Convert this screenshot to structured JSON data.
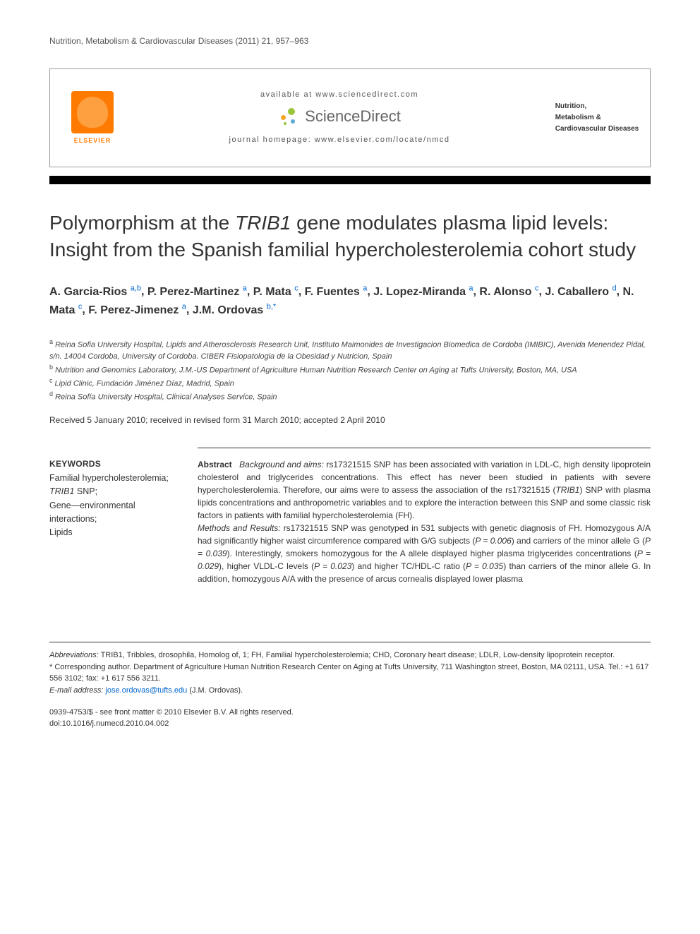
{
  "running_head": "Nutrition, Metabolism & Cardiovascular Diseases (2011) 21, 957–963",
  "masthead": {
    "available_at": "available at www.sciencedirect.com",
    "sciencedirect": "ScienceDirect",
    "journal_homepage": "journal homepage: www.elsevier.com/locate/nmcd",
    "elsevier_label": "ELSEVIER",
    "journal_cover_lines": [
      "Nutrition,",
      "Metabolism &",
      "Cardiovascular Diseases"
    ]
  },
  "title": {
    "pre": "Polymorphism at the ",
    "gene": "TRIB1",
    "post": " gene modulates plasma lipid levels: Insight from the Spanish familial hypercholesterolemia cohort study"
  },
  "authors": [
    {
      "name": "A. Garcia-Rios",
      "sup": "a,b"
    },
    {
      "name": "P. Perez-Martinez",
      "sup": "a"
    },
    {
      "name": "P. Mata",
      "sup": "c"
    },
    {
      "name": "F. Fuentes",
      "sup": "a"
    },
    {
      "name": "J. Lopez-Miranda",
      "sup": "a"
    },
    {
      "name": "R. Alonso",
      "sup": "c"
    },
    {
      "name": "J. Caballero",
      "sup": "d"
    },
    {
      "name": "N. Mata",
      "sup": "c"
    },
    {
      "name": "F. Perez-Jimenez",
      "sup": "a"
    },
    {
      "name": "J.M. Ordovas",
      "sup": "b,*"
    }
  ],
  "affiliations": [
    {
      "key": "a",
      "text": "Reina Sofia University Hospital, Lipids and Atherosclerosis Research Unit, Instituto Maimonides de Investigacion Biomedica de Cordoba (IMIBIC), Avenida Menendez Pidal, s/n. 14004 Cordoba, University of Cordoba. CIBER Fisiopatologia de la Obesidad y Nutricion, Spain"
    },
    {
      "key": "b",
      "text": "Nutrition and Genomics Laboratory, J.M.-US Department of Agriculture Human Nutrition Research Center on Aging at Tufts University, Boston, MA, USA"
    },
    {
      "key": "c",
      "text": "Lipid Clinic, Fundación Jiménez Díaz, Madrid, Spain"
    },
    {
      "key": "d",
      "text": "Reina Sofía University Hospital, Clinical Analyses Service, Spain"
    }
  ],
  "dates": "Received 5 January 2010; received in revised form 31 March 2010; accepted 2 April 2010",
  "keywords": {
    "heading": "KEYWORDS",
    "items": "Familial hypercholesterolemia;\nTRIB1 SNP;\nGene—environmental interactions;\nLipids"
  },
  "abstract": {
    "label": "Abstract",
    "background_label": "Background and aims:",
    "background_text": " rs17321515 SNP has been associated with variation in LDL-C, high density lipoprotein cholesterol and triglycerides concentrations. This effect has never been studied in patients with severe hypercholesterolemia. Therefore, our aims were to assess the association of the rs17321515 (",
    "background_gene": "TRIB1",
    "background_text2": ") SNP with plasma lipids concentrations and anthropometric variables and to explore the interaction between this SNP and some classic risk factors in patients with familial hypercholesterolemia (FH).",
    "methods_label": "Methods and Results:",
    "methods_text": " rs17321515 SNP was genotyped in 531 subjects with genetic diagnosis of FH. Homozygous A/A had significantly higher waist circumference compared with G/G subjects (",
    "p1": "P = 0.006",
    "methods_text2": ") and carriers of the minor allele G (",
    "p2": "P = 0.039",
    "methods_text3": "). Interestingly, smokers homozygous for the A allele displayed higher plasma triglycerides concentrations (",
    "p3": "P = 0.029",
    "methods_text4": "), higher VLDL-C levels (",
    "p4": "P = 0.023",
    "methods_text5": ") and higher TC/HDL-C ratio (",
    "p5": "P = 0.035",
    "methods_text6": ") than carriers of the minor allele G. In addition, homozygous A/A with the presence of arcus cornealis displayed lower plasma"
  },
  "footnotes": {
    "abbrev_label": "Abbreviations:",
    "abbrev_text": " TRIB1, Tribbles, drosophila, Homolog of, 1; FH, Familial hypercholesterolemia; CHD, Coronary heart disease; LDLR, Low-density lipoprotein receptor.",
    "corr_label": "* Corresponding author.",
    "corr_text": " Department of Agriculture Human Nutrition Research Center on Aging at Tufts University, 711 Washington street, Boston, MA 02111, USA. Tel.: +1 617 556 3102; fax: +1 617 556 3211.",
    "email_label": "E-mail address:",
    "email": "jose.ordovas@tufts.edu",
    "email_who": " (J.M. Ordovas)."
  },
  "copyright": {
    "line1": "0939-4753/$ - see front matter © 2010 Elsevier B.V. All rights reserved.",
    "line2": "doi:10.1016/j.numecd.2010.04.002"
  },
  "colors": {
    "elsevier_orange": "#ff7a00",
    "link_blue": "#0066cc",
    "sd_green": "#9ac43a",
    "sd_orange": "#f5a623",
    "sd_blue": "#5aa7d6"
  }
}
